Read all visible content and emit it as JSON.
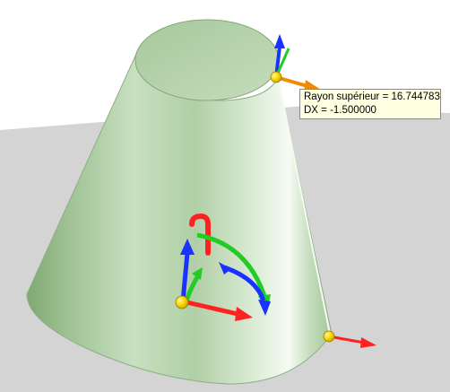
{
  "tooltip": {
    "line1": "Rayon supérieur = 16.744783",
    "line2": "DX = -1.500000"
  },
  "colors": {
    "background": "#ffffff",
    "ground_plane": "#d4d4d4",
    "cone_body": "#a9c9a0",
    "cone_top": "#b8d5ae",
    "handle_yellow": "#ffd400",
    "axis_x": "#ff2020",
    "axis_y": "#1a32ff",
    "axis_z": "#00c000",
    "top_handle_arrow": "#f08a00",
    "rotate_red": "#ff2020",
    "rotate_green": "#22cc22",
    "rotate_blue": "#1a32ff"
  },
  "icons": [
    "top-radius-handle",
    "bottom-radius-handle",
    "origin-handle",
    "rotation-triad"
  ]
}
